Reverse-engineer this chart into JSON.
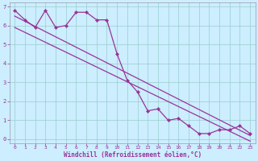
{
  "xlabel": "Windchill (Refroidissement éolien,°C)",
  "bg_color": "#cceeff",
  "line_color": "#993399",
  "grid_color": "#99cccc",
  "xlim": [
    -0.5,
    23.5
  ],
  "ylim": [
    -0.2,
    7.2
  ],
  "xticks": [
    0,
    1,
    2,
    3,
    4,
    5,
    6,
    7,
    8,
    9,
    10,
    11,
    12,
    13,
    14,
    15,
    16,
    17,
    18,
    19,
    20,
    21,
    22,
    23
  ],
  "yticks": [
    0,
    1,
    2,
    3,
    4,
    5,
    6,
    7
  ],
  "zigzag_x": [
    0,
    1,
    2,
    3,
    4,
    5,
    6,
    7,
    8,
    9,
    10,
    11,
    12,
    13,
    14,
    15,
    16,
    17,
    18,
    19,
    20,
    21,
    22,
    23
  ],
  "zigzag_y": [
    6.8,
    6.3,
    5.9,
    6.8,
    5.9,
    6.0,
    6.7,
    6.7,
    6.3,
    6.3,
    4.5,
    3.1,
    2.5,
    1.5,
    1.6,
    1.0,
    1.1,
    0.7,
    0.3,
    0.3,
    0.5,
    0.5,
    0.7,
    0.3
  ],
  "trend1_x": [
    0,
    23
  ],
  "trend1_y": [
    6.5,
    0.2
  ],
  "trend2_x": [
    0,
    23
  ],
  "trend2_y": [
    5.9,
    -0.1
  ],
  "spine_color": "#9999aa"
}
